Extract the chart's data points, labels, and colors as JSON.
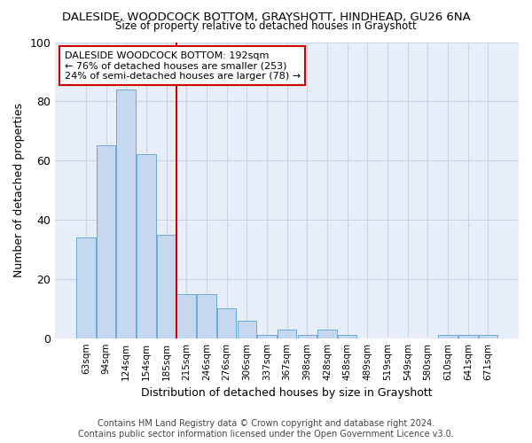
{
  "title": "DALESIDE, WOODCOCK BOTTOM, GRAYSHOTT, HINDHEAD, GU26 6NA",
  "subtitle": "Size of property relative to detached houses in Grayshott",
  "xlabel": "Distribution of detached houses by size in Grayshott",
  "ylabel": "Number of detached properties",
  "bar_labels": [
    "63sqm",
    "94sqm",
    "124sqm",
    "154sqm",
    "185sqm",
    "215sqm",
    "246sqm",
    "276sqm",
    "306sqm",
    "337sqm",
    "367sqm",
    "398sqm",
    "428sqm",
    "458sqm",
    "489sqm",
    "519sqm",
    "549sqm",
    "580sqm",
    "610sqm",
    "641sqm",
    "671sqm"
  ],
  "bar_values": [
    34,
    65,
    84,
    62,
    35,
    15,
    15,
    10,
    6,
    1,
    3,
    1,
    3,
    1,
    0,
    0,
    0,
    0,
    1,
    1,
    1
  ],
  "bar_color": "#c5d8f0",
  "bar_edgecolor": "#6aaad4",
  "grid_color": "#c8d4e8",
  "background_color": "#e8eef8",
  "vline_x": 4.5,
  "vline_color": "#cc0000",
  "annotation_line1": "DALESIDE WOODCOCK BOTTOM: 192sqm",
  "annotation_line2": "← 76% of detached houses are smaller (253)",
  "annotation_line3": "24% of semi-detached houses are larger (78) →",
  "ylim": [
    0,
    100
  ],
  "yticks": [
    0,
    20,
    40,
    60,
    80,
    100
  ],
  "footer_line1": "Contains HM Land Registry data © Crown copyright and database right 2024.",
  "footer_line2": "Contains public sector information licensed under the Open Government Licence v3.0."
}
